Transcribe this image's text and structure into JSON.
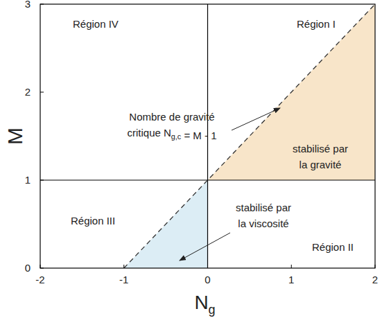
{
  "chart_data": {
    "type": "line",
    "xlabel": {
      "text": "N",
      "sub": "g"
    },
    "ylabel": "M",
    "xlim": [
      -2,
      2
    ],
    "ylim": [
      0,
      3
    ],
    "xticks": [
      -2,
      -1,
      0,
      1,
      2
    ],
    "yticks": [
      0,
      1,
      2,
      3
    ],
    "grid": false,
    "series": [
      {
        "type": "area",
        "color": "#f8e5c9",
        "x": [
          0,
          2,
          2
        ],
        "values": [
          1,
          3,
          1
        ]
      },
      {
        "type": "area",
        "color": "#dcedf5",
        "x": [
          -1,
          0,
          0
        ],
        "values": [
          0,
          1,
          0
        ]
      },
      {
        "type": "line",
        "color": "#000000",
        "line_style": "solid",
        "x": [
          0,
          0
        ],
        "values": [
          0,
          3
        ]
      },
      {
        "type": "line",
        "color": "#000000",
        "line_style": "solid",
        "x": [
          -2,
          2
        ],
        "values": [
          1,
          1
        ]
      },
      {
        "type": "line",
        "color": "#333333",
        "line_style": "dashed",
        "x": [
          -1,
          2
        ],
        "values": [
          0,
          3
        ]
      }
    ],
    "annotations": [
      {
        "lines": [
          [
            "Région IV"
          ]
        ]
      },
      {
        "lines": [
          [
            "Région I"
          ]
        ]
      },
      {
        "lines": [
          [
            "Région III"
          ]
        ]
      },
      {
        "lines": [
          [
            "Région II"
          ]
        ]
      },
      {
        "lines": [
          [
            "Nombre de gravité"
          ],
          [
            "critique N",
            {
              "sub": "g,c"
            },
            " = M - 1"
          ]
        ]
      },
      {
        "lines": [
          [
            "stabilisé par"
          ],
          [
            "la gravité"
          ]
        ]
      },
      {
        "lines": [
          [
            "stabilisé par"
          ],
          [
            "la viscosité"
          ]
        ]
      }
    ]
  }
}
